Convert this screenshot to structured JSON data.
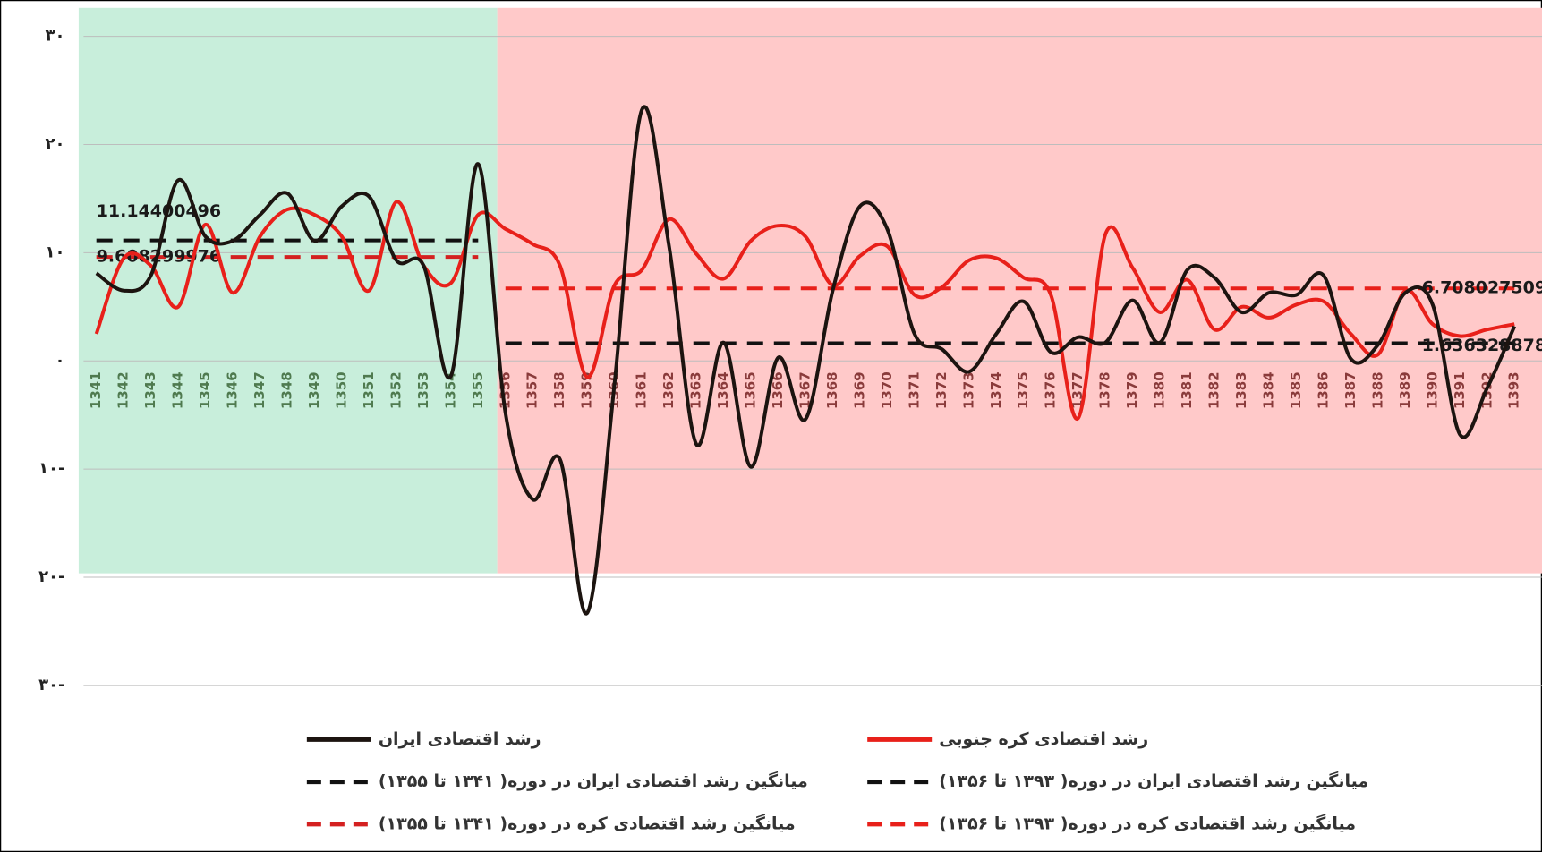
{
  "chart_data": {
    "type": "line",
    "categories": [
      "1341",
      "1342",
      "1343",
      "1344",
      "1345",
      "1346",
      "1347",
      "1348",
      "1349",
      "1350",
      "1351",
      "1352",
      "1353",
      "1354",
      "1355",
      "1356",
      "1357",
      "1358",
      "1359",
      "1360",
      "1361",
      "1362",
      "1363",
      "1364",
      "1365",
      "1366",
      "1367",
      "1368",
      "1369",
      "1370",
      "1371",
      "1372",
      "1373",
      "1374",
      "1375",
      "1376",
      "1377",
      "1378",
      "1379",
      "1380",
      "1381",
      "1382",
      "1383",
      "1384",
      "1385",
      "1386",
      "1387",
      "1388",
      "1389",
      "1390",
      "1391",
      "1392",
      "1393"
    ],
    "series": [
      {
        "name": "رشد اقتصادی ایران",
        "color": "#1c1410",
        "style": "solid",
        "values": [
          8.1,
          6.5,
          7.9,
          16.7,
          11.5,
          11.1,
          13.5,
          15.5,
          11.1,
          14.3,
          15.2,
          9.3,
          8.8,
          -1.4,
          18.2,
          -4.8,
          -12.8,
          -9.1,
          -23.3,
          -2.1,
          23.2,
          10.6,
          -7.7,
          1.7,
          -9.8,
          0.3,
          -5.4,
          6.5,
          14.3,
          12.2,
          2.5,
          1.1,
          -1.0,
          2.5,
          5.5,
          0.8,
          2.2,
          1.7,
          5.6,
          1.7,
          8.4,
          7.7,
          4.5,
          6.3,
          6.1,
          7.9,
          0.2,
          1.5,
          6.3,
          5.2,
          -6.8,
          -2.5,
          3.2
        ]
      },
      {
        "name": "رشد اقتصادی کره جنوبی",
        "color": "#e8201a",
        "style": "solid",
        "values": [
          2.5,
          9.5,
          8.8,
          5.0,
          12.6,
          6.3,
          11.5,
          14.0,
          13.5,
          11.5,
          6.5,
          14.7,
          8.8,
          7.2,
          13.5,
          12.2,
          10.8,
          8.8,
          -1.5,
          7.0,
          8.4,
          13.1,
          9.9,
          7.6,
          11.1,
          12.5,
          11.5,
          7.0,
          9.7,
          10.6,
          6.1,
          6.8,
          9.3,
          9.5,
          7.7,
          6.1,
          -5.3,
          11.7,
          8.6,
          4.5,
          7.5,
          2.9,
          5.0,
          4.0,
          5.2,
          5.5,
          2.5,
          0.6,
          6.5,
          3.4,
          2.3,
          2.9,
          3.4
        ]
      },
      {
        "name": "میانگین رشد اقتصادی ایران در دوره( ۱۳۴۱ تا ۱۳۵۵)",
        "color": "#111111",
        "style": "dashed",
        "values": [
          11.14400496,
          11.14400496,
          11.14400496,
          11.14400496,
          11.14400496,
          11.14400496,
          11.14400496,
          11.14400496,
          11.14400496,
          11.14400496,
          11.14400496,
          11.14400496,
          11.14400496,
          11.14400496,
          11.14400496,
          null,
          null,
          null,
          null,
          null,
          null,
          null,
          null,
          null,
          null,
          null,
          null,
          null,
          null,
          null,
          null,
          null,
          null,
          null,
          null,
          null,
          null,
          null,
          null,
          null,
          null,
          null,
          null,
          null,
          null,
          null,
          null,
          null,
          null,
          null,
          null,
          null,
          null
        ]
      },
      {
        "name": "میانگین رشد اقتصادی ایران در دوره( ۱۳۹۳ تا ۱۳۵۶)",
        "color": "#111111",
        "style": "dashed",
        "values": [
          null,
          null,
          null,
          null,
          null,
          null,
          null,
          null,
          null,
          null,
          null,
          null,
          null,
          null,
          null,
          1.636328878,
          1.636328878,
          1.636328878,
          1.636328878,
          1.636328878,
          1.636328878,
          1.636328878,
          1.636328878,
          1.636328878,
          1.636328878,
          1.636328878,
          1.636328878,
          1.636328878,
          1.636328878,
          1.636328878,
          1.636328878,
          1.636328878,
          1.636328878,
          1.636328878,
          1.636328878,
          1.636328878,
          1.636328878,
          1.636328878,
          1.636328878,
          1.636328878,
          1.636328878,
          1.636328878,
          1.636328878,
          1.636328878,
          1.636328878,
          1.636328878,
          1.636328878,
          1.636328878,
          1.636328878,
          1.636328878,
          1.636328878,
          1.636328878,
          1.636328878
        ]
      },
      {
        "name": "میانگین رشد اقتصادی کره در دوره( ۱۳۴۱ تا ۱۳۵۵)",
        "color": "#d42020",
        "style": "dashed",
        "values": [
          9.608299976,
          9.608299976,
          9.608299976,
          9.608299976,
          9.608299976,
          9.608299976,
          9.608299976,
          9.608299976,
          9.608299976,
          9.608299976,
          9.608299976,
          9.608299976,
          9.608299976,
          9.608299976,
          9.608299976,
          null,
          null,
          null,
          null,
          null,
          null,
          null,
          null,
          null,
          null,
          null,
          null,
          null,
          null,
          null,
          null,
          null,
          null,
          null,
          null,
          null,
          null,
          null,
          null,
          null,
          null,
          null,
          null,
          null,
          null,
          null,
          null,
          null,
          null,
          null,
          null,
          null,
          null
        ]
      },
      {
        "name": "میانگین رشد اقتصادی کره در دوره( ۱۳۹۳ تا ۱۳۵۶)",
        "color": "#e8201a",
        "style": "dashed",
        "values": [
          null,
          null,
          null,
          null,
          null,
          null,
          null,
          null,
          null,
          null,
          null,
          null,
          null,
          null,
          null,
          6.708027509,
          6.708027509,
          6.708027509,
          6.708027509,
          6.708027509,
          6.708027509,
          6.708027509,
          6.708027509,
          6.708027509,
          6.708027509,
          6.708027509,
          6.708027509,
          6.708027509,
          6.708027509,
          6.708027509,
          6.708027509,
          6.708027509,
          6.708027509,
          6.708027509,
          6.708027509,
          6.708027509,
          6.708027509,
          6.708027509,
          6.708027509,
          6.708027509,
          6.708027509,
          6.708027509,
          6.708027509,
          6.708027509,
          6.708027509,
          6.708027509,
          6.708027509,
          6.708027509,
          6.708027509,
          6.708027509,
          6.708027509,
          6.708027509,
          6.708027509
        ]
      }
    ],
    "ylim": [
      -30,
      30
    ],
    "yticks": [
      {
        "value": -30,
        "label": "۳۰-"
      },
      {
        "value": -20,
        "label": "۲۰-"
      },
      {
        "value": -10,
        "label": "۱۰-"
      },
      {
        "value": 0,
        "label": "۰"
      },
      {
        "value": 10,
        "label": "۱۰"
      },
      {
        "value": 20,
        "label": "۲۰"
      },
      {
        "value": 30,
        "label": "۳۰"
      }
    ],
    "grid": true
  }
}
